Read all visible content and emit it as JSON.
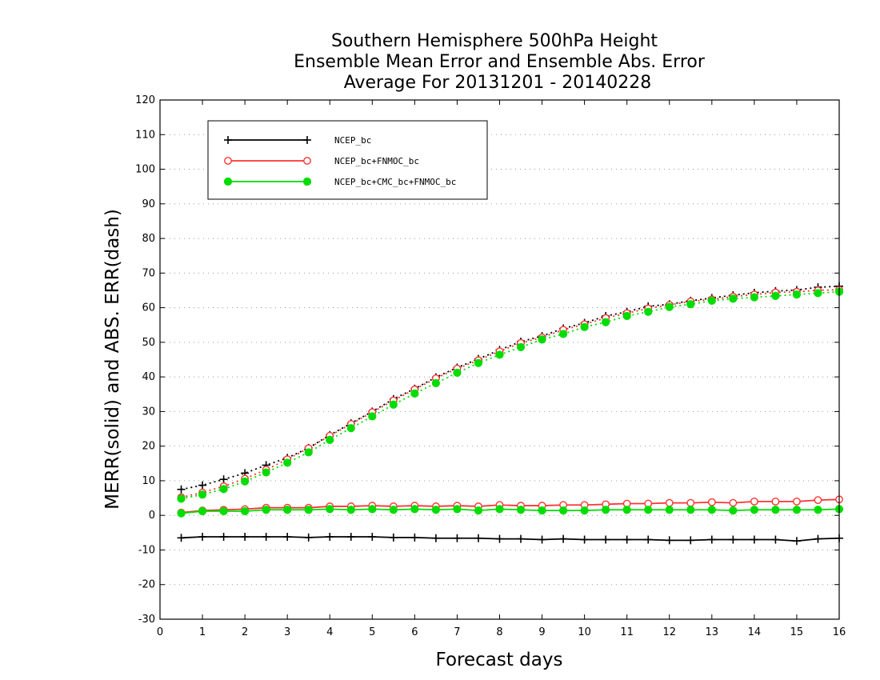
{
  "chart_data": {
    "type": "line",
    "title_lines": [
      "Southern Hemisphere 500hPa Height",
      "Ensemble Mean Error and Ensemble Abs. Error",
      "Average For 20131201 - 20140228"
    ],
    "xlabel": "Forecast days",
    "ylabel": "MERR(solid) and ABS. ERR(dash)",
    "xlim": [
      0,
      16
    ],
    "ylim": [
      -30,
      120
    ],
    "x_ticks": [
      0,
      1,
      2,
      3,
      4,
      5,
      6,
      7,
      8,
      9,
      10,
      11,
      12,
      13,
      14,
      15,
      16
    ],
    "y_ticks": [
      -30,
      -20,
      -10,
      0,
      10,
      20,
      30,
      40,
      50,
      60,
      70,
      80,
      90,
      100,
      110,
      120
    ],
    "grid": "horizontal dotted",
    "legend_position": "top-left",
    "x": [
      0.5,
      1,
      1.5,
      2,
      2.5,
      3,
      3.5,
      4,
      4.5,
      5,
      5.5,
      6,
      6.5,
      7,
      7.5,
      8,
      8.5,
      9,
      9.5,
      10,
      10.5,
      11,
      11.5,
      12,
      12.5,
      13,
      13.5,
      14,
      14.5,
      15,
      15.5,
      16
    ],
    "series": [
      {
        "name": "NCEP_bc",
        "color": "#000000",
        "marker": "plus",
        "merr": [
          -6.5,
          -6.2,
          -6.2,
          -6.2,
          -6.2,
          -6.2,
          -6.4,
          -6.2,
          -6.2,
          -6.2,
          -6.4,
          -6.4,
          -6.6,
          -6.6,
          -6.6,
          -6.8,
          -6.8,
          -7.0,
          -6.8,
          -7.0,
          -7.0,
          -7.0,
          -7.0,
          -7.2,
          -7.2,
          -7.0,
          -7.0,
          -7.0,
          -7.0,
          -7.4,
          -6.8,
          -6.6
        ],
        "abs_err": [
          7.5,
          8.7,
          10.4,
          12.2,
          14.5,
          16.6,
          19.5,
          23.2,
          26.6,
          30.0,
          33.6,
          36.6,
          39.9,
          42.7,
          45.2,
          47.8,
          50.2,
          51.8,
          54.0,
          55.6,
          57.6,
          58.8,
          60.4,
          61.0,
          62.0,
          62.8,
          63.6,
          64.3,
          64.8,
          65.1,
          65.9,
          66.2
        ]
      },
      {
        "name": "NCEP_bc+FNMOC_bc",
        "color": "#ff3333",
        "marker": "open-circle",
        "merr": [
          0.8,
          1.4,
          1.6,
          1.8,
          2.2,
          2.2,
          2.2,
          2.6,
          2.6,
          2.8,
          2.6,
          2.8,
          2.6,
          2.8,
          2.6,
          3.0,
          2.8,
          2.8,
          3.0,
          3.0,
          3.2,
          3.4,
          3.4,
          3.6,
          3.6,
          3.8,
          3.6,
          4.0,
          4.0,
          4.0,
          4.4,
          4.6
        ],
        "abs_err": [
          5.2,
          6.6,
          8.4,
          10.6,
          13.2,
          16.2,
          19.4,
          23.0,
          26.4,
          29.8,
          33.2,
          36.4,
          39.6,
          42.4,
          44.8,
          47.4,
          49.8,
          51.4,
          53.6,
          55.2,
          57.0,
          58.4,
          59.8,
          60.8,
          61.8,
          62.4,
          63.2,
          63.8,
          64.4,
          64.6,
          65.0,
          65.2
        ]
      },
      {
        "name": "NCEP_bc+CMC_bc+FNMOC_bc",
        "color": "#00dd00",
        "marker": "filled-circle",
        "merr": [
          0.6,
          1.2,
          1.2,
          1.2,
          1.6,
          1.6,
          1.6,
          1.8,
          1.6,
          1.8,
          1.6,
          1.8,
          1.6,
          1.8,
          1.4,
          1.8,
          1.6,
          1.4,
          1.4,
          1.4,
          1.6,
          1.6,
          1.6,
          1.6,
          1.6,
          1.6,
          1.4,
          1.6,
          1.6,
          1.6,
          1.6,
          1.8
        ],
        "abs_err": [
          4.8,
          6.0,
          7.6,
          9.8,
          12.4,
          15.2,
          18.2,
          21.8,
          25.2,
          28.6,
          32.0,
          35.2,
          38.2,
          41.2,
          44.0,
          46.4,
          48.6,
          50.8,
          52.4,
          54.4,
          55.8,
          57.6,
          58.8,
          60.2,
          61.0,
          62.0,
          62.6,
          63.0,
          63.4,
          63.8,
          64.2,
          64.6
        ]
      }
    ]
  }
}
